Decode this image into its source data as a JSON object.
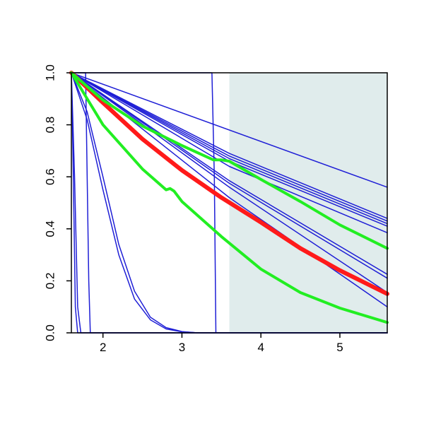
{
  "chart_data": {
    "type": "line",
    "title": "",
    "xlabel": "",
    "ylabel": "",
    "xlim": [
      1.6,
      5.6
    ],
    "ylim": [
      0,
      1
    ],
    "x_ticks": [
      2,
      3,
      4,
      5
    ],
    "y_ticks": [
      0.0,
      0.2,
      0.4,
      0.6,
      0.8,
      1.0
    ],
    "x_tick_labels": [
      "2",
      "3",
      "4",
      "5"
    ],
    "y_tick_labels": [
      "0.0",
      "0.2",
      "0.4",
      "0.6",
      "0.8",
      "1.0"
    ],
    "grid": false,
    "legend": "none",
    "shaded_region": {
      "x_from": 3.6,
      "x_to": 5.6,
      "color": "#e0ecec"
    },
    "colors": {
      "blue": "#1f1fd6",
      "red": "#ff1a1a",
      "green": "#22ee22",
      "axis": "#000000"
    },
    "series": [
      {
        "color": "blue",
        "width": 1.5,
        "points": [
          [
            1.6,
            1.0
          ],
          [
            5.6,
            0.56
          ]
        ]
      },
      {
        "color": "blue",
        "width": 1.5,
        "points": [
          [
            1.6,
            1.0
          ],
          [
            3.6,
            0.69
          ],
          [
            5.6,
            0.44
          ]
        ]
      },
      {
        "color": "blue",
        "width": 1.5,
        "points": [
          [
            1.6,
            1.0
          ],
          [
            3.6,
            0.68
          ],
          [
            5.6,
            0.43
          ]
        ]
      },
      {
        "color": "blue",
        "width": 1.5,
        "points": [
          [
            1.6,
            1.0
          ],
          [
            3.6,
            0.67
          ],
          [
            5.6,
            0.42
          ]
        ]
      },
      {
        "color": "blue",
        "width": 1.5,
        "points": [
          [
            1.6,
            1.0
          ],
          [
            3.6,
            0.66
          ],
          [
            5.6,
            0.41
          ]
        ]
      },
      {
        "color": "blue",
        "width": 1.5,
        "points": [
          [
            1.6,
            1.0
          ],
          [
            3.6,
            0.64
          ],
          [
            5.6,
            0.385
          ]
        ]
      },
      {
        "color": "blue",
        "width": 1.5,
        "points": [
          [
            1.6,
            1.0
          ],
          [
            3.6,
            0.585
          ],
          [
            5.6,
            0.225
          ]
        ]
      },
      {
        "color": "blue",
        "width": 1.5,
        "points": [
          [
            1.6,
            1.0
          ],
          [
            3.6,
            0.575
          ],
          [
            5.6,
            0.21
          ]
        ]
      },
      {
        "color": "blue",
        "width": 1.5,
        "points": [
          [
            1.6,
            1.0
          ],
          [
            3.6,
            0.56
          ],
          [
            5.6,
            0.155
          ]
        ]
      },
      {
        "color": "blue",
        "width": 1.5,
        "points": [
          [
            1.6,
            1.0
          ],
          [
            3.6,
            0.52
          ],
          [
            5.6,
            0.1
          ]
        ]
      },
      {
        "color": "blue",
        "width": 1.5,
        "points": [
          [
            1.6,
            1.0
          ],
          [
            1.8,
            0.82
          ],
          [
            2.0,
            0.55
          ],
          [
            2.2,
            0.3
          ],
          [
            2.4,
            0.13
          ],
          [
            2.6,
            0.05
          ],
          [
            2.8,
            0.015
          ],
          [
            3.0,
            0.004
          ],
          [
            3.2,
            0.0
          ],
          [
            5.6,
            0.0
          ]
        ]
      },
      {
        "color": "blue",
        "width": 1.5,
        "points": [
          [
            1.6,
            1.0
          ],
          [
            1.8,
            0.85
          ],
          [
            2.0,
            0.6
          ],
          [
            2.2,
            0.34
          ],
          [
            2.4,
            0.16
          ],
          [
            2.6,
            0.06
          ],
          [
            2.8,
            0.02
          ],
          [
            3.0,
            0.005
          ],
          [
            3.2,
            0.0
          ],
          [
            5.6,
            0.0
          ]
        ]
      },
      {
        "color": "blue",
        "width": 1.5,
        "points": [
          [
            1.6,
            1.0
          ],
          [
            1.62,
            0.7
          ],
          [
            1.65,
            0.1
          ],
          [
            1.68,
            0.0
          ],
          [
            5.6,
            0.0
          ]
        ]
      },
      {
        "color": "blue",
        "width": 1.5,
        "points": [
          [
            1.6,
            1.0
          ],
          [
            1.64,
            0.6
          ],
          [
            1.68,
            0.1
          ],
          [
            1.72,
            0.0
          ],
          [
            5.6,
            0.0
          ]
        ]
      },
      {
        "color": "blue",
        "width": 1.5,
        "points": [
          [
            1.6,
            1.0
          ],
          [
            1.78,
            1.0
          ],
          [
            1.82,
            0.2
          ],
          [
            1.84,
            0.0
          ],
          [
            5.6,
            0.0
          ]
        ]
      },
      {
        "color": "blue",
        "width": 1.5,
        "points": [
          [
            1.6,
            1.0
          ],
          [
            3.38,
            1.0
          ],
          [
            3.41,
            0.6
          ],
          [
            3.43,
            0.0
          ],
          [
            5.6,
            0.0
          ]
        ]
      },
      {
        "color": "red",
        "width": 6,
        "points": [
          [
            1.6,
            1.0
          ],
          [
            2.0,
            0.885
          ],
          [
            2.5,
            0.745
          ],
          [
            3.0,
            0.625
          ],
          [
            3.5,
            0.52
          ],
          [
            4.0,
            0.425
          ],
          [
            4.5,
            0.325
          ],
          [
            5.0,
            0.24
          ],
          [
            5.6,
            0.15
          ]
        ]
      },
      {
        "color": "green",
        "width": 4,
        "points": [
          [
            1.6,
            1.0
          ],
          [
            2.0,
            0.895
          ],
          [
            2.5,
            0.795
          ],
          [
            3.0,
            0.72
          ],
          [
            3.4,
            0.665
          ],
          [
            3.5,
            0.665
          ],
          [
            3.6,
            0.66
          ],
          [
            4.0,
            0.59
          ],
          [
            4.5,
            0.505
          ],
          [
            5.0,
            0.415
          ],
          [
            5.6,
            0.325
          ]
        ]
      },
      {
        "color": "green",
        "width": 4,
        "points": [
          [
            1.6,
            1.0
          ],
          [
            2.0,
            0.8
          ],
          [
            2.5,
            0.63
          ],
          [
            2.8,
            0.55
          ],
          [
            2.85,
            0.555
          ],
          [
            2.9,
            0.545
          ],
          [
            3.0,
            0.505
          ],
          [
            3.5,
            0.37
          ],
          [
            4.0,
            0.245
          ],
          [
            4.5,
            0.155
          ],
          [
            5.0,
            0.095
          ],
          [
            5.6,
            0.04
          ]
        ]
      }
    ]
  }
}
